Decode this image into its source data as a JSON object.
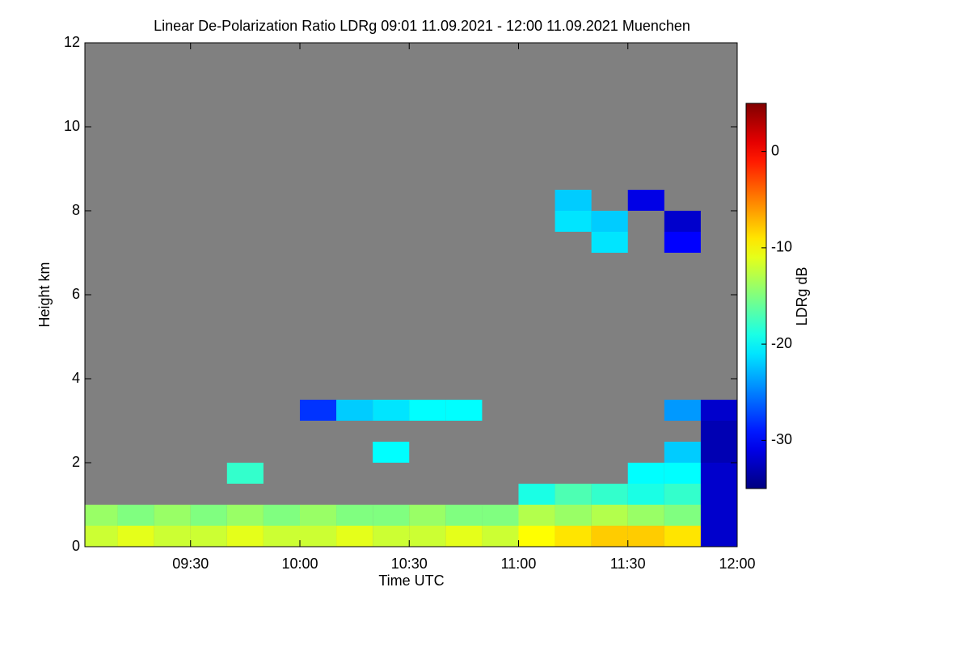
{
  "chart_data": {
    "type": "heatmap",
    "title": "Linear De-Polarization Ratio LDRg   09:01 11.09.2021 - 12:00 11.09.2021 Muenchen",
    "x_label": "Time UTC",
    "y_label": "Height km",
    "colorbar_label": "LDRg dB",
    "colormap": "jet",
    "missing_color": "#808080",
    "xlim": [
      9.0167,
      12.0
    ],
    "xticks": [
      {
        "value": 9.5,
        "label": "09:30"
      },
      {
        "value": 10.0,
        "label": "10:00"
      },
      {
        "value": 10.5,
        "label": "10:30"
      },
      {
        "value": 11.0,
        "label": "11:00"
      },
      {
        "value": 11.5,
        "label": "11:30"
      },
      {
        "value": 12.0,
        "label": "12:00"
      }
    ],
    "ylim": [
      0,
      12
    ],
    "yticks": [
      0,
      2,
      4,
      6,
      8,
      10,
      12
    ],
    "clim": [
      -35,
      5
    ],
    "cticks": [
      0,
      -10,
      -20,
      -30
    ],
    "x": [
      9.0833,
      9.25,
      9.4167,
      9.5833,
      9.75,
      9.9167,
      10.0833,
      10.25,
      10.4167,
      10.5833,
      10.75,
      10.9167,
      11.0833,
      11.25,
      11.4167,
      11.5833,
      11.75,
      11.9167
    ],
    "y": [
      0.25,
      0.75,
      1.25,
      1.75,
      2.25,
      2.75,
      3.25,
      3.75,
      4.25,
      4.75,
      5.25,
      5.75,
      6.25,
      6.75,
      7.25,
      7.75,
      8.25,
      8.75
    ],
    "z": [
      [
        -12,
        -11,
        -12,
        -12,
        -11,
        -12,
        -12,
        -11,
        -12,
        -12,
        -11,
        -12,
        -10,
        -9,
        -8,
        -8,
        -9,
        -32
      ],
      [
        -14,
        -15,
        -14,
        -15,
        -14,
        -15,
        -14,
        -15,
        -15,
        -14,
        -15,
        -15,
        -13,
        -14,
        -13,
        -14,
        -15,
        -32
      ],
      [
        null,
        null,
        null,
        null,
        null,
        null,
        null,
        null,
        null,
        null,
        null,
        null,
        -19,
        -17,
        -18,
        -19,
        -18,
        -32
      ],
      [
        null,
        null,
        null,
        null,
        -18,
        null,
        null,
        null,
        null,
        null,
        null,
        null,
        null,
        null,
        null,
        -20,
        -20,
        -32
      ],
      [
        null,
        null,
        null,
        null,
        null,
        null,
        null,
        null,
        -20,
        null,
        null,
        null,
        null,
        null,
        null,
        null,
        -22,
        -33
      ],
      [
        null,
        null,
        null,
        null,
        null,
        null,
        null,
        null,
        null,
        null,
        null,
        null,
        null,
        null,
        null,
        null,
        null,
        -33
      ],
      [
        null,
        null,
        null,
        null,
        null,
        null,
        -28,
        -22,
        -21,
        -20,
        -20,
        null,
        null,
        null,
        null,
        null,
        -24,
        -32
      ],
      [
        null,
        null,
        null,
        null,
        null,
        null,
        null,
        null,
        null,
        null,
        null,
        null,
        null,
        null,
        null,
        null,
        null,
        null
      ],
      [
        null,
        null,
        null,
        null,
        null,
        null,
        null,
        null,
        null,
        null,
        null,
        null,
        null,
        null,
        null,
        null,
        null,
        null
      ],
      [
        null,
        null,
        null,
        null,
        null,
        null,
        null,
        null,
        null,
        null,
        null,
        null,
        null,
        null,
        null,
        null,
        null,
        null
      ],
      [
        null,
        null,
        null,
        null,
        null,
        null,
        null,
        null,
        null,
        null,
        null,
        null,
        null,
        null,
        null,
        null,
        null,
        null
      ],
      [
        null,
        null,
        null,
        null,
        null,
        null,
        null,
        null,
        null,
        null,
        null,
        null,
        null,
        null,
        null,
        null,
        null,
        null
      ],
      [
        null,
        null,
        null,
        null,
        null,
        null,
        null,
        null,
        null,
        null,
        null,
        null,
        null,
        null,
        null,
        null,
        null,
        null
      ],
      [
        null,
        null,
        null,
        null,
        null,
        null,
        null,
        null,
        null,
        null,
        null,
        null,
        null,
        null,
        null,
        null,
        null,
        null
      ],
      [
        null,
        null,
        null,
        null,
        null,
        null,
        null,
        null,
        null,
        null,
        null,
        null,
        null,
        null,
        -21,
        null,
        -30,
        null
      ],
      [
        null,
        null,
        null,
        null,
        null,
        null,
        null,
        null,
        null,
        null,
        null,
        null,
        null,
        -21,
        -22,
        null,
        -32,
        null
      ],
      [
        null,
        null,
        null,
        null,
        null,
        null,
        null,
        null,
        null,
        null,
        null,
        null,
        null,
        -22,
        null,
        -31,
        null,
        null
      ],
      [
        null,
        null,
        null,
        null,
        null,
        null,
        null,
        null,
        null,
        null,
        null,
        null,
        null,
        null,
        null,
        null,
        null,
        null
      ]
    ]
  }
}
